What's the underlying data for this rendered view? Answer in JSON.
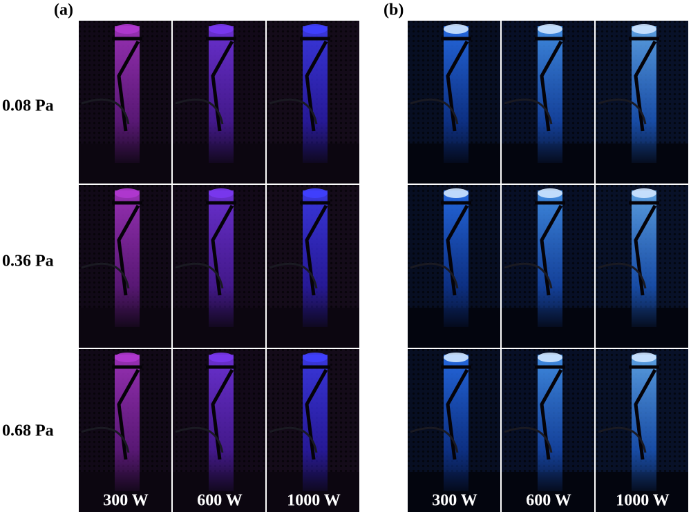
{
  "panels": [
    {
      "label": "(a)",
      "columns": [
        "300 W",
        "600 W",
        "1000 W"
      ]
    },
    {
      "label": "(b)",
      "columns": [
        "300 W",
        "600 W",
        "1000 W"
      ]
    }
  ],
  "rows": [
    "0.08 Pa",
    "0.36 Pa",
    "0.68 Pa"
  ]
}
